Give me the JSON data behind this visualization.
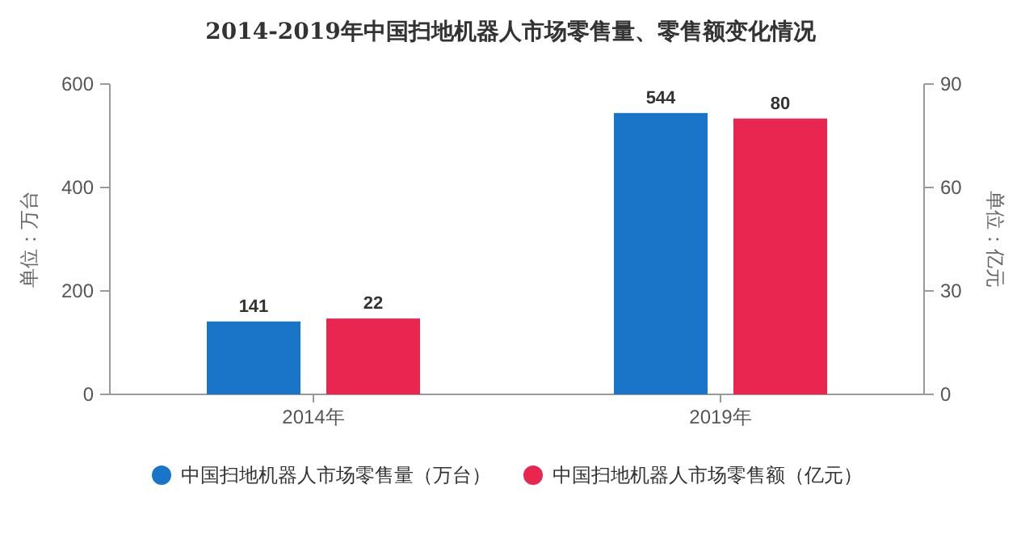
{
  "chart_data": {
    "type": "bar",
    "title": "2014-2019年中国扫地机器人市场零售量、零售额变化情况",
    "ylabel": "单位：万台",
    "y2label": "单位：亿元",
    "categories": [
      "2014年",
      "2019年"
    ],
    "series": [
      {
        "name": "中国扫地机器人市场零售量（万台）",
        "color": "#1a75c8",
        "values": [
          141,
          544
        ]
      },
      {
        "name": "中国扫地机器人市场零售额（亿元）",
        "color": "#e8264f",
        "values": [
          22,
          80
        ],
        "axis": "y2"
      }
    ],
    "ylim": [
      0,
      600
    ],
    "yticks": [
      0,
      200,
      400,
      600
    ],
    "y2lim": [
      0,
      90
    ],
    "y2ticks": [
      0,
      30,
      60,
      90
    ],
    "data_labels": true,
    "legend": "bottom"
  }
}
